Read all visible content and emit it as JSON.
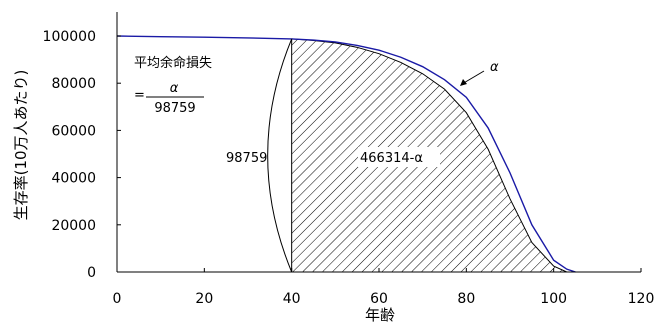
{
  "chart_data": {
    "type": "line",
    "xlabel": "年齢",
    "ylabel": "生存率(10万人あたり)",
    "xlim": [
      0,
      120
    ],
    "ylim": [
      0,
      100000
    ],
    "x_ticks": [
      "0",
      "20",
      "40",
      "60",
      "80",
      "100",
      "120"
    ],
    "y_ticks": [
      "0",
      "20000",
      "40000",
      "60000",
      "80000",
      "100000"
    ],
    "grid": false,
    "shaded_region": {
      "x_from": 40,
      "pattern": "diagonal-hatch"
    },
    "series": [
      {
        "name": "α",
        "color": "#1a1aa6",
        "x": [
          0,
          10,
          20,
          30,
          40,
          45,
          50,
          55,
          60,
          65,
          70,
          75,
          80,
          85,
          90,
          95,
          100,
          103,
          105
        ],
        "values": [
          100000,
          99700,
          99500,
          99200,
          98759,
          98300,
          97500,
          96000,
          94000,
          91000,
          87000,
          81500,
          74000,
          61000,
          42000,
          20000,
          5000,
          1200,
          0
        ]
      },
      {
        "x": [
          40,
          45,
          50,
          55,
          60,
          65,
          70,
          75,
          80,
          85,
          90,
          95,
          100,
          103
        ],
        "values": [
          98759,
          98100,
          97100,
          95200,
          92500,
          88800,
          84000,
          77500,
          67500,
          52000,
          31000,
          12500,
          2500,
          0
        ]
      }
    ],
    "annotations": {
      "formula_title": "平均余命損失",
      "formula_eq": "=",
      "formula_numerator": "α",
      "formula_denominator": "98759",
      "left_label": "98759",
      "region_label": "466314-α",
      "alpha_label": "α"
    }
  }
}
